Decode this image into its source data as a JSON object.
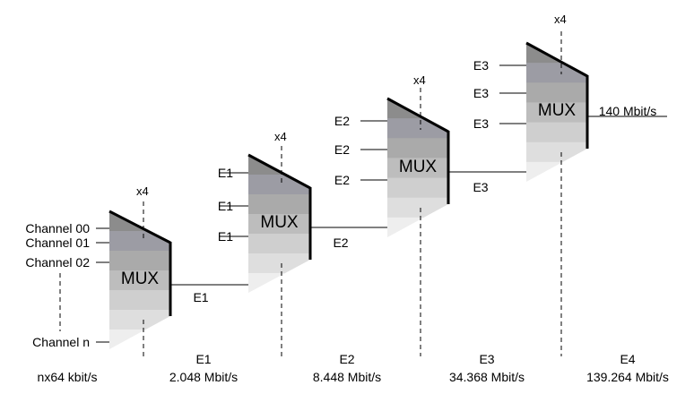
{
  "stages": [
    {
      "mux_label": "MUX",
      "multiplier": "x4",
      "inputs": [
        "Channel 00",
        "Channel 01",
        "Channel 02",
        "Channel n"
      ],
      "output": "E1"
    },
    {
      "mux_label": "MUX",
      "multiplier": "x4",
      "inputs": [
        "E1",
        "E1",
        "E1"
      ],
      "output": "E2"
    },
    {
      "mux_label": "MUX",
      "multiplier": "x4",
      "inputs": [
        "E2",
        "E2",
        "E2"
      ],
      "output": "E3"
    },
    {
      "mux_label": "MUX",
      "multiplier": "x4",
      "inputs": [
        "E3",
        "E3",
        "E3"
      ],
      "output": "140 Mbit/s"
    }
  ],
  "rate_labels": [
    {
      "level": "",
      "rate": "nx64 kbit/s"
    },
    {
      "level": "E1",
      "rate": "2.048 Mbit/s"
    },
    {
      "level": "E2",
      "rate": "8.448 Mbit/s"
    },
    {
      "level": "E3",
      "rate": "34.368 Mbit/s"
    },
    {
      "level": "E4",
      "rate": "139.264 Mbit/s"
    }
  ],
  "colors": {
    "band_1": "#8c8c8c",
    "band_2": "#9c9ca4",
    "band_3": "#aaaaaa",
    "band_4": "#bdbdbd",
    "band_5": "#cfcfcf",
    "band_6": "#dedede",
    "band_7": "#eeeeee"
  }
}
